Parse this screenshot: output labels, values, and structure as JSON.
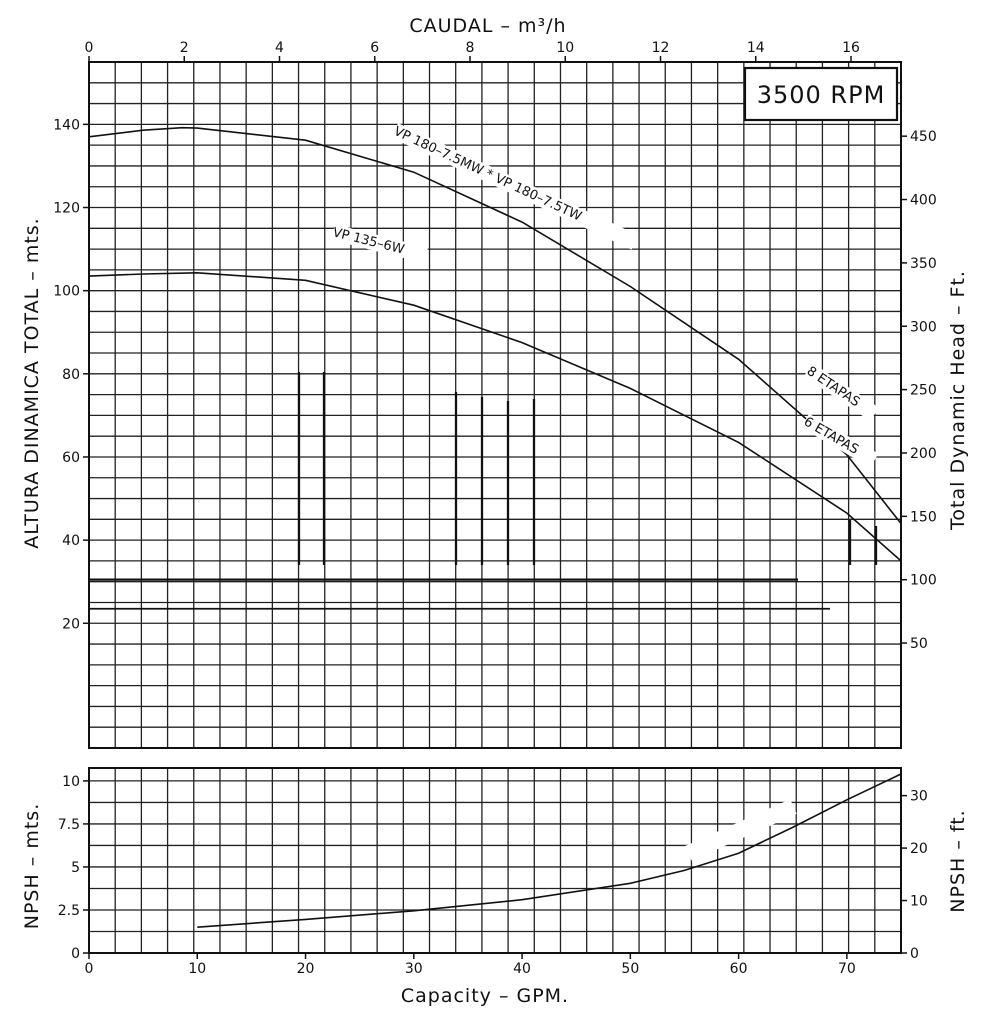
{
  "chart_data": [
    {
      "type": "line",
      "rpm_label": "3500 RPM",
      "top_axis": {
        "label": "CAUDAL  – m³/h",
        "range": [
          0,
          17.05
        ],
        "ticks": [
          "0",
          "2",
          "4",
          "6",
          "8",
          "10",
          "12",
          "14",
          "16"
        ]
      },
      "bottom_axis": {
        "label": "Capacity – GPM.",
        "range": [
          0,
          75
        ],
        "ticks": [
          "0",
          "10",
          "20",
          "30",
          "40",
          "50",
          "60",
          "70"
        ]
      },
      "left_axis": {
        "label": "ALTURA  DINAMICA  TOTAL  –  mts.",
        "range": [
          -10,
          155
        ],
        "ticks": [
          "20",
          "40",
          "60",
          "80",
          "100",
          "120",
          "140"
        ]
      },
      "right_axis": {
        "label": "Total Dynamic Head – Ft.",
        "ticks": [
          "50",
          "100",
          "150",
          "200",
          "250",
          "300",
          "350",
          "400",
          "450"
        ]
      },
      "grid": true,
      "series": [
        {
          "name": "VP 180–7.5MW * VP 180–7.5TW",
          "annotation": "8 ETAPAS",
          "x": [
            0,
            5,
            8.6,
            10,
            20,
            30,
            40,
            50,
            60,
            70,
            75
          ],
          "y": [
            137,
            138.6,
            139.2,
            139.1,
            136.2,
            128.5,
            116.5,
            101,
            83.5,
            60.5,
            44
          ]
        },
        {
          "name": "VP 135–6W",
          "annotation": "6 ETAPAS",
          "x": [
            0,
            5,
            10,
            20,
            30,
            40,
            50,
            60,
            70,
            75
          ],
          "y": [
            103.5,
            104,
            104.3,
            102.5,
            96.5,
            87.5,
            76.5,
            63.5,
            46.5,
            35
          ]
        }
      ]
    },
    {
      "type": "line",
      "bottom_axis": {
        "label": "Capacity – GPM.",
        "range": [
          0,
          75
        ]
      },
      "left_axis": {
        "label": "NPSH – mts.",
        "range": [
          0,
          10.75
        ],
        "ticks": [
          "0",
          "2.5",
          "5",
          "7.5",
          "10"
        ]
      },
      "right_axis": {
        "label": "NPSH – ft.",
        "ticks": [
          "0",
          "10",
          "20",
          "30"
        ]
      },
      "grid": true,
      "series": [
        {
          "name": "VP 180–7.5TW",
          "x": [
            10,
            20,
            30,
            40,
            50,
            55,
            60,
            65,
            70,
            75
          ],
          "y": [
            1.5,
            1.95,
            2.45,
            3.1,
            4.05,
            4.8,
            5.8,
            7.3,
            8.9,
            10.4
          ]
        }
      ]
    }
  ]
}
